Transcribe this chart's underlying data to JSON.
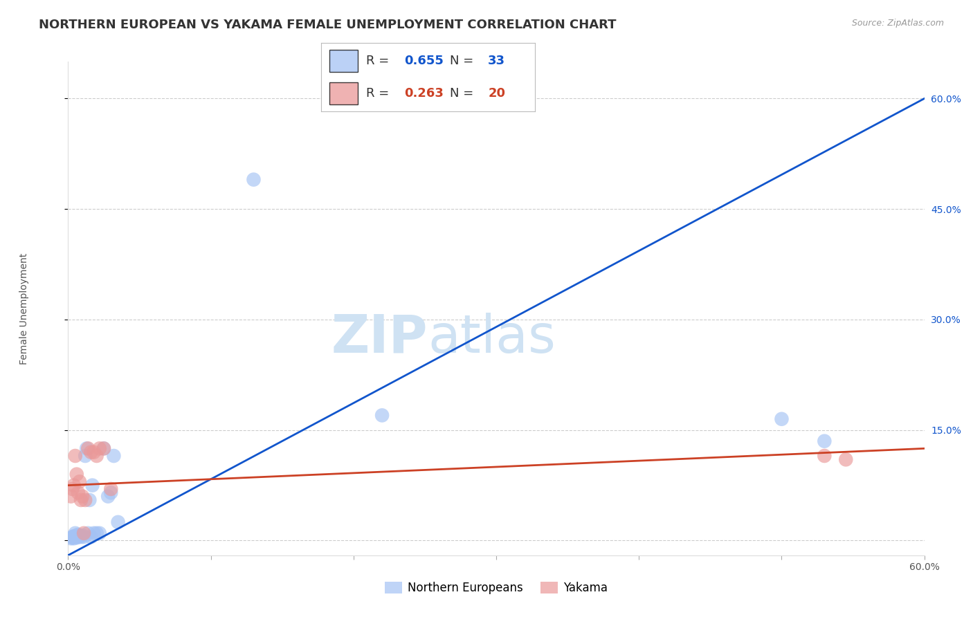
{
  "title": "NORTHERN EUROPEAN VS YAKAMA FEMALE UNEMPLOYMENT CORRELATION CHART",
  "source": "Source: ZipAtlas.com",
  "ylabel": "Female Unemployment",
  "xlim": [
    0.0,
    0.6
  ],
  "ylim": [
    -0.02,
    0.65
  ],
  "watermark_zip": "ZIP",
  "watermark_atlas": "atlas",
  "blue_R": 0.655,
  "blue_N": 33,
  "pink_R": 0.263,
  "pink_N": 20,
  "blue_color": "#a4c2f4",
  "pink_color": "#ea9999",
  "blue_line_color": "#1155cc",
  "pink_line_color": "#cc4125",
  "legend_blue_label": "Northern Europeans",
  "legend_pink_label": "Yakama",
  "blue_points_x": [
    0.002,
    0.003,
    0.003,
    0.004,
    0.004,
    0.005,
    0.005,
    0.006,
    0.006,
    0.007,
    0.007,
    0.008,
    0.009,
    0.01,
    0.011,
    0.012,
    0.013,
    0.014,
    0.015,
    0.016,
    0.017,
    0.018,
    0.02,
    0.022,
    0.025,
    0.028,
    0.03,
    0.032,
    0.035,
    0.13,
    0.22,
    0.5,
    0.53
  ],
  "blue_points_y": [
    0.003,
    0.004,
    0.005,
    0.003,
    0.006,
    0.005,
    0.01,
    0.004,
    0.007,
    0.005,
    0.008,
    0.006,
    0.005,
    0.007,
    0.005,
    0.115,
    0.125,
    0.01,
    0.055,
    0.005,
    0.075,
    0.01,
    0.01,
    0.01,
    0.125,
    0.06,
    0.065,
    0.115,
    0.025,
    0.49,
    0.17,
    0.165,
    0.135
  ],
  "pink_points_x": [
    0.002,
    0.003,
    0.004,
    0.005,
    0.006,
    0.007,
    0.008,
    0.009,
    0.01,
    0.011,
    0.012,
    0.014,
    0.016,
    0.018,
    0.02,
    0.022,
    0.025,
    0.03,
    0.53,
    0.545
  ],
  "pink_points_y": [
    0.06,
    0.07,
    0.075,
    0.115,
    0.09,
    0.065,
    0.08,
    0.055,
    0.06,
    0.01,
    0.055,
    0.125,
    0.12,
    0.12,
    0.115,
    0.125,
    0.125,
    0.07,
    0.115,
    0.11
  ],
  "blue_line_x0": 0.0,
  "blue_line_y0": -0.02,
  "blue_line_x1": 0.6,
  "blue_line_y1": 0.6,
  "pink_line_x0": 0.0,
  "pink_line_y0": 0.075,
  "pink_line_x1": 0.6,
  "pink_line_y1": 0.125,
  "grid_color": "#cccccc",
  "background_color": "#ffffff",
  "title_fontsize": 13,
  "axis_label_fontsize": 10,
  "tick_fontsize": 10,
  "legend_fontsize": 13,
  "watermark_fontsize": 55,
  "watermark_color": "#cfe2f3"
}
